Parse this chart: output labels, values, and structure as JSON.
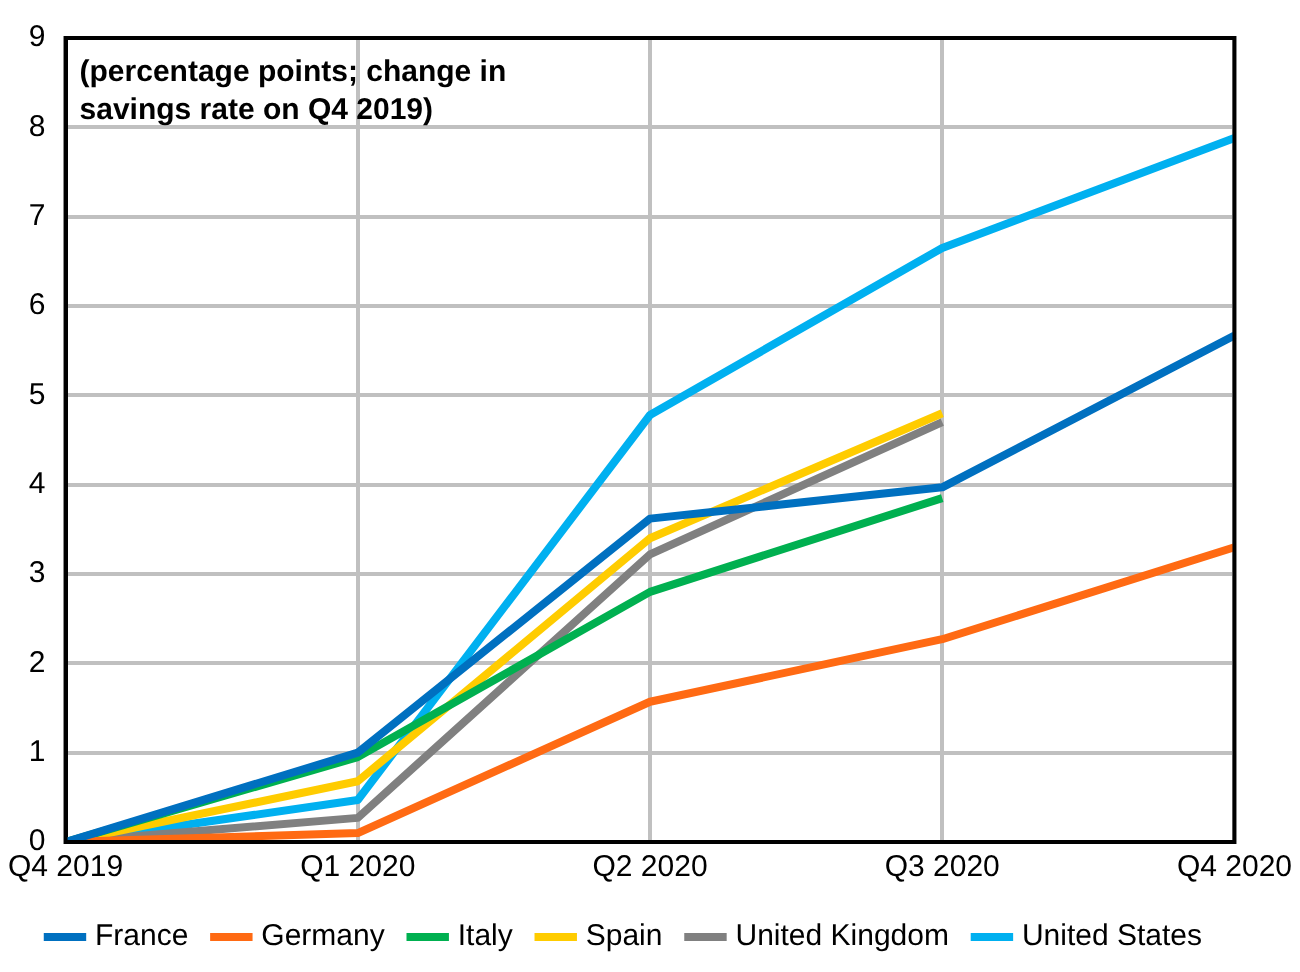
{
  "chart_data": {
    "type": "line",
    "categories": [
      "Q4 2019",
      "Q1 2020",
      "Q2 2020",
      "Q3 2020",
      "Q4 2020"
    ],
    "series": [
      {
        "name": "France",
        "color": "#0070c0",
        "values": [
          0,
          1.0,
          3.62,
          3.97,
          5.67
        ]
      },
      {
        "name": "Germany",
        "color": "#ff6a13",
        "values": [
          0,
          0.1,
          1.57,
          2.27,
          3.3
        ]
      },
      {
        "name": "Italy",
        "color": "#00b050",
        "values": [
          0,
          0.95,
          2.8,
          3.85,
          null
        ]
      },
      {
        "name": "Spain",
        "color": "#ffcc00",
        "values": [
          0,
          0.68,
          3.4,
          4.8,
          null
        ]
      },
      {
        "name": "United Kingdom",
        "color": "#808080",
        "values": [
          0,
          0.27,
          3.22,
          4.7,
          null
        ]
      },
      {
        "name": "United States",
        "color": "#00b0f0",
        "values": [
          0,
          0.47,
          4.78,
          6.65,
          7.88
        ]
      }
    ],
    "ylim": [
      0,
      9
    ],
    "yticks": [
      0,
      1,
      2,
      3,
      4,
      5,
      6,
      7,
      8,
      9
    ],
    "grid": true,
    "legend": "bottom",
    "marker": "none",
    "line_style": "solid",
    "annotations": [
      "(percentage points; change in savings rate on Q4 2019)"
    ]
  }
}
